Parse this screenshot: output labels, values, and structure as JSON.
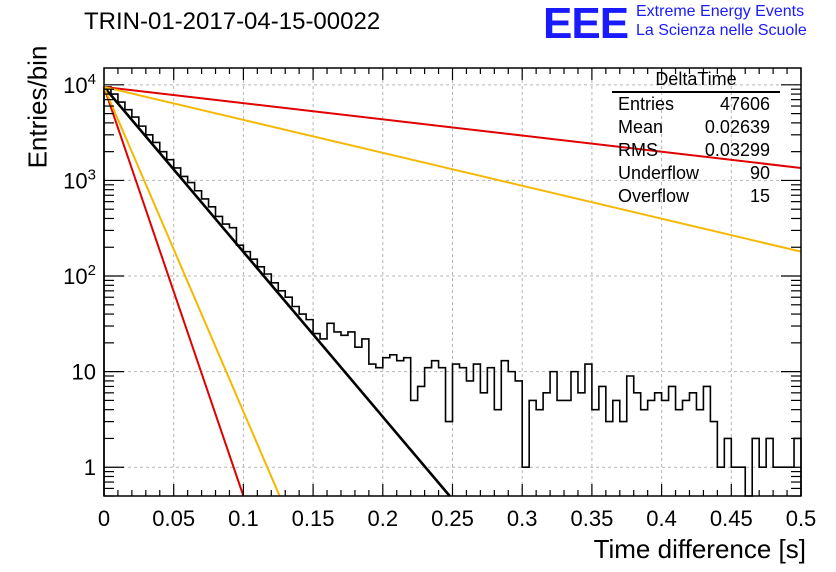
{
  "header": {
    "title": "TRIN-01-2017-04-15-00022",
    "logo_text": "EEE",
    "logo_line1": "Extreme Energy Events",
    "logo_line2": "La Scienza nelle Scuole",
    "logo_color": "#1a1aff"
  },
  "stats": {
    "name": "DeltaTime",
    "rows": [
      {
        "label": "Entries",
        "value": "47606"
      },
      {
        "label": "Mean",
        "value": "0.02639"
      },
      {
        "label": "RMS",
        "value": "0.03299"
      },
      {
        "label": "Underflow",
        "value": "90"
      },
      {
        "label": "Overflow",
        "value": "15"
      }
    ]
  },
  "chart_data": {
    "type": "histogram",
    "title": "TRIN-01-2017-04-15-00022",
    "xlabel": "Time difference [s]",
    "ylabel": "Entries/bin",
    "xlim": [
      0,
      0.5
    ],
    "ylim": [
      0.5,
      15000
    ],
    "yscale": "log",
    "grid": true,
    "bin_width": 0.005,
    "x_ticks": [
      "0",
      "0.05",
      "0.1",
      "0.15",
      "0.2",
      "0.25",
      "0.3",
      "0.35",
      "0.4",
      "0.45",
      "0.5"
    ],
    "y_ticks": [
      {
        "value": 1,
        "label": "1"
      },
      {
        "value": 10,
        "label": "10"
      },
      {
        "value": 100,
        "label": "10",
        "exp": "2"
      },
      {
        "value": 1000,
        "label": "10",
        "exp": "3"
      },
      {
        "value": 10000,
        "label": "10",
        "exp": "4"
      }
    ],
    "histogram": {
      "color": "#000000",
      "values": [
        9500,
        8000,
        6600,
        5500,
        4600,
        3700,
        3000,
        2500,
        2000,
        1650,
        1350,
        1100,
        950,
        780,
        640,
        530,
        420,
        350,
        320,
        210,
        180,
        150,
        125,
        105,
        85,
        70,
        60,
        48,
        40,
        35,
        25,
        22,
        32,
        26,
        24,
        26,
        18,
        22,
        12,
        11,
        14,
        15,
        13,
        14,
        5,
        7,
        11,
        13,
        11,
        3,
        12,
        11,
        8,
        12,
        6,
        11,
        4,
        13,
        10,
        8,
        1,
        5,
        4,
        6,
        10,
        5,
        5,
        10,
        6,
        12,
        4,
        7,
        3,
        5,
        3,
        9,
        6,
        4,
        5,
        6,
        5,
        7,
        4,
        5,
        6,
        4,
        7,
        3,
        1,
        2,
        1,
        1,
        0.5,
        2,
        1,
        2,
        1,
        1,
        1,
        2
      ]
    },
    "lines": [
      {
        "name": "black",
        "color": "#000000",
        "x0": 0,
        "y0": 9500,
        "x1": 0.248,
        "y1": 0.5
      },
      {
        "name": "red-steep",
        "color": "#e00000",
        "x0": 0,
        "y0": 9500,
        "x1": 0.1,
        "y1": 0.5
      },
      {
        "name": "orange-steep",
        "color": "#f5b800",
        "x0": 0,
        "y0": 9500,
        "x1": 0.126,
        "y1": 0.5
      },
      {
        "name": "red-shallow",
        "color": "#e00000",
        "x0": 0,
        "y0": 9500,
        "x1": 0.5,
        "y1": 1350
      },
      {
        "name": "orange-shallow",
        "color": "#f5b800",
        "x0": 0,
        "y0": 9500,
        "x1": 0.5,
        "y1": 180
      }
    ]
  }
}
